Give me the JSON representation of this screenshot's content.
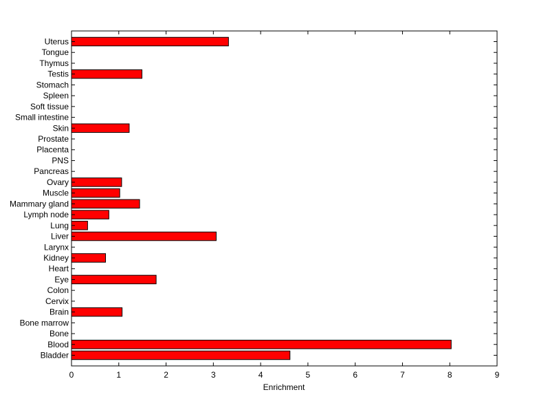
{
  "chart_data": {
    "type": "bar",
    "orientation": "horizontal",
    "xlabel": "Enrichment",
    "xlim": [
      0,
      9
    ],
    "xticks": [
      "0",
      "1",
      "2",
      "3",
      "4",
      "5",
      "6",
      "7",
      "8",
      "9"
    ],
    "bar_color": "#ff0000",
    "grid": false,
    "categories": [
      "Bladder",
      "Blood",
      "Bone",
      "Bone marrow",
      "Brain",
      "Cervix",
      "Colon",
      "Eye",
      "Heart",
      "Kidney",
      "Larynx",
      "Liver",
      "Lung",
      "Lymph node",
      "Mammary gland",
      "Muscle",
      "Ovary",
      "Pancreas",
      "PNS",
      "Placenta",
      "Prostate",
      "Skin",
      "Small intestine",
      "Soft tissue",
      "Spleen",
      "Stomach",
      "Testis",
      "Thymus",
      "Tongue",
      "Uterus"
    ],
    "values": [
      4.62,
      8.03,
      0,
      0,
      1.07,
      0,
      0,
      1.79,
      0,
      0.72,
      0,
      3.06,
      0.34,
      0.79,
      1.44,
      1.02,
      1.06,
      0,
      0,
      0,
      0,
      1.22,
      0,
      0,
      0,
      0,
      1.49,
      0,
      0,
      3.32
    ]
  }
}
